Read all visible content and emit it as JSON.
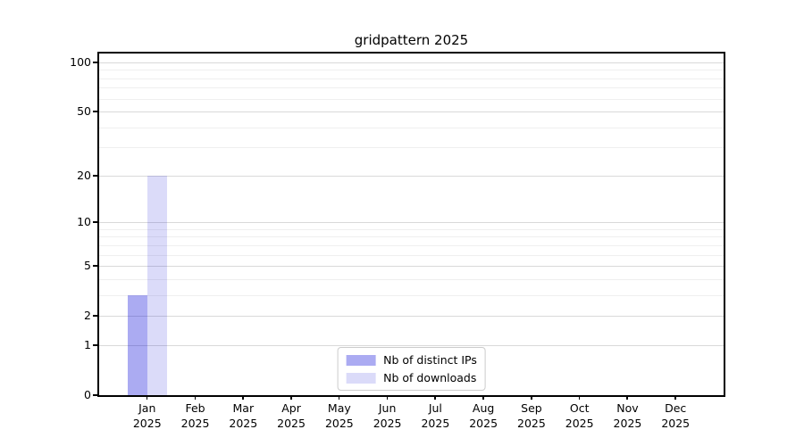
{
  "title": "gridpattern 2025",
  "chart_data": {
    "type": "bar",
    "title": "gridpattern 2025",
    "months": [
      "Jan",
      "Feb",
      "Mar",
      "Apr",
      "May",
      "Jun",
      "Jul",
      "Aug",
      "Sep",
      "Oct",
      "Nov",
      "Dec"
    ],
    "year": "2025",
    "series": [
      {
        "name": "Nb of distinct IPs",
        "hex": "#acacf2",
        "fill": "rgba(0,0,215,0.33)",
        "values": [
          3,
          0,
          0,
          0,
          0,
          0,
          0,
          0,
          0,
          0,
          0,
          0
        ]
      },
      {
        "name": "Nb of downloads",
        "hex": "#dcdcf8",
        "fill": "rgba(0,0,215,0.14)",
        "values": [
          20,
          0,
          0,
          0,
          0,
          0,
          0,
          0,
          0,
          0,
          0,
          0
        ]
      }
    ],
    "yscale": "log1p",
    "yticks": [
      0,
      1,
      2,
      5,
      10,
      20,
      50,
      100
    ],
    "yticks_minor": [
      3,
      4,
      6,
      7,
      8,
      9,
      30,
      40,
      60,
      70,
      80,
      90
    ],
    "ylim": [
      0,
      113
    ],
    "grid": true,
    "legend_position": "lower center",
    "colors": {
      "grid_major": "#d9d9d9",
      "grid_minor": "#efefef",
      "axis": "#000000",
      "background": "#ffffff"
    }
  }
}
